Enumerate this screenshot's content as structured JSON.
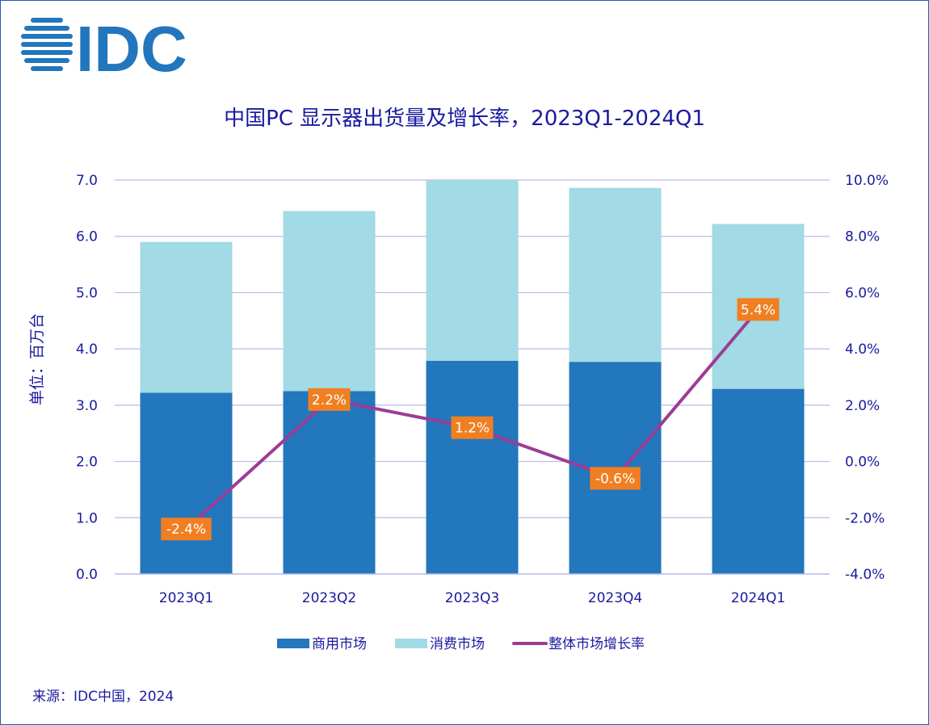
{
  "logo": {
    "text": "IDC",
    "color": "#2176bd"
  },
  "source": "来源：IDC中国，2024",
  "chart_data": {
    "type": "bar",
    "title": "中国PC 显示器出货量及增长率，2023Q1-2024Q1",
    "ylabel": "单位：百万台",
    "categories": [
      "2023Q1",
      "2023Q2",
      "2023Q3",
      "2023Q4",
      "2024Q1"
    ],
    "stacked": true,
    "ylim": [
      0,
      7
    ],
    "y_ticks": [
      "0.0",
      "1.0",
      "2.0",
      "3.0",
      "4.0",
      "5.0",
      "6.0",
      "7.0"
    ],
    "y2lim": [
      -4,
      10
    ],
    "y2_ticks": [
      "-4.0%",
      "-2.0%",
      "0.0%",
      "2.0%",
      "4.0%",
      "6.0%",
      "8.0%",
      "10.0%"
    ],
    "series": [
      {
        "name": "商用市场",
        "type": "bar",
        "color": "#2277bd",
        "values": [
          3.22,
          3.25,
          3.79,
          3.77,
          3.29
        ]
      },
      {
        "name": "消费市场",
        "type": "bar",
        "color": "#a2dae5",
        "values": [
          2.68,
          3.2,
          3.21,
          3.09,
          2.93
        ]
      },
      {
        "name": "整体市场增长率",
        "type": "line",
        "axis": "right",
        "color": "#9b3d96",
        "values": [
          -2.4,
          2.2,
          1.2,
          -0.6,
          5.4
        ],
        "labels": [
          "-2.4%",
          "2.2%",
          "1.2%",
          "-0.6%",
          "5.4%"
        ]
      }
    ],
    "data_label_color": "#f07f21",
    "grid": true,
    "legend_position": "bottom"
  }
}
